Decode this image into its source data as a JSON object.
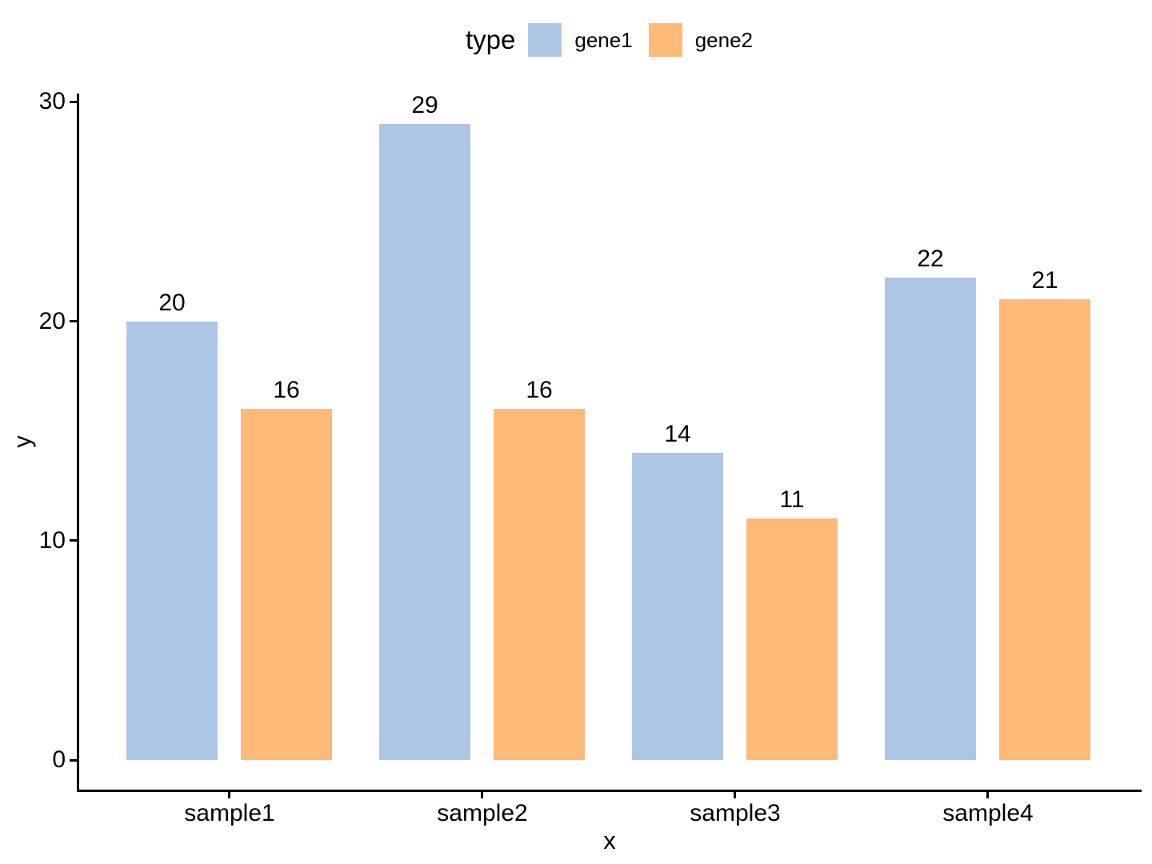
{
  "chart_data": {
    "type": "bar",
    "title": "",
    "xlabel": "x",
    "ylabel": "y",
    "legend_title": "type",
    "legend_position": "top",
    "categories": [
      "sample1",
      "sample2",
      "sample3",
      "sample4"
    ],
    "series": [
      {
        "name": "gene1",
        "color": "#AEC6E6",
        "values": [
          20,
          29,
          14,
          22
        ]
      },
      {
        "name": "gene2",
        "color": "#FDB978",
        "values": [
          16,
          16,
          11,
          21
        ]
      }
    ],
    "bar_value_labels": [
      [
        "20",
        "16"
      ],
      [
        "29",
        "16"
      ],
      [
        "14",
        "11"
      ],
      [
        "22",
        "21"
      ]
    ],
    "yticks": [
      "0",
      "10",
      "20",
      "30"
    ],
    "ytick_values": [
      0,
      10,
      20,
      30
    ],
    "ylim": [
      -1.4,
      30.4
    ],
    "grid": false,
    "background_color": "#FFFFFF",
    "axis_color": "#000000",
    "text_color": "#000000"
  }
}
